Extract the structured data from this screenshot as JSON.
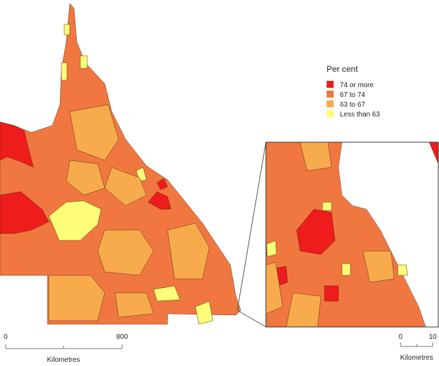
{
  "legend": {
    "title": "Per cent",
    "items": [
      {
        "label": "74 or more",
        "color": "#ee1c1c"
      },
      {
        "label": "67 to 74",
        "color": "#f07840"
      },
      {
        "label": "63 to 67",
        "color": "#f8ab4c"
      },
      {
        "label": "Less than 63",
        "color": "#fdfd78"
      }
    ]
  },
  "main_scale": {
    "ticks": [
      "0",
      "800"
    ],
    "unit": "Kilometres"
  },
  "inset_scale": {
    "ticks": [
      "0",
      "10"
    ],
    "unit": "Kilometres"
  }
}
